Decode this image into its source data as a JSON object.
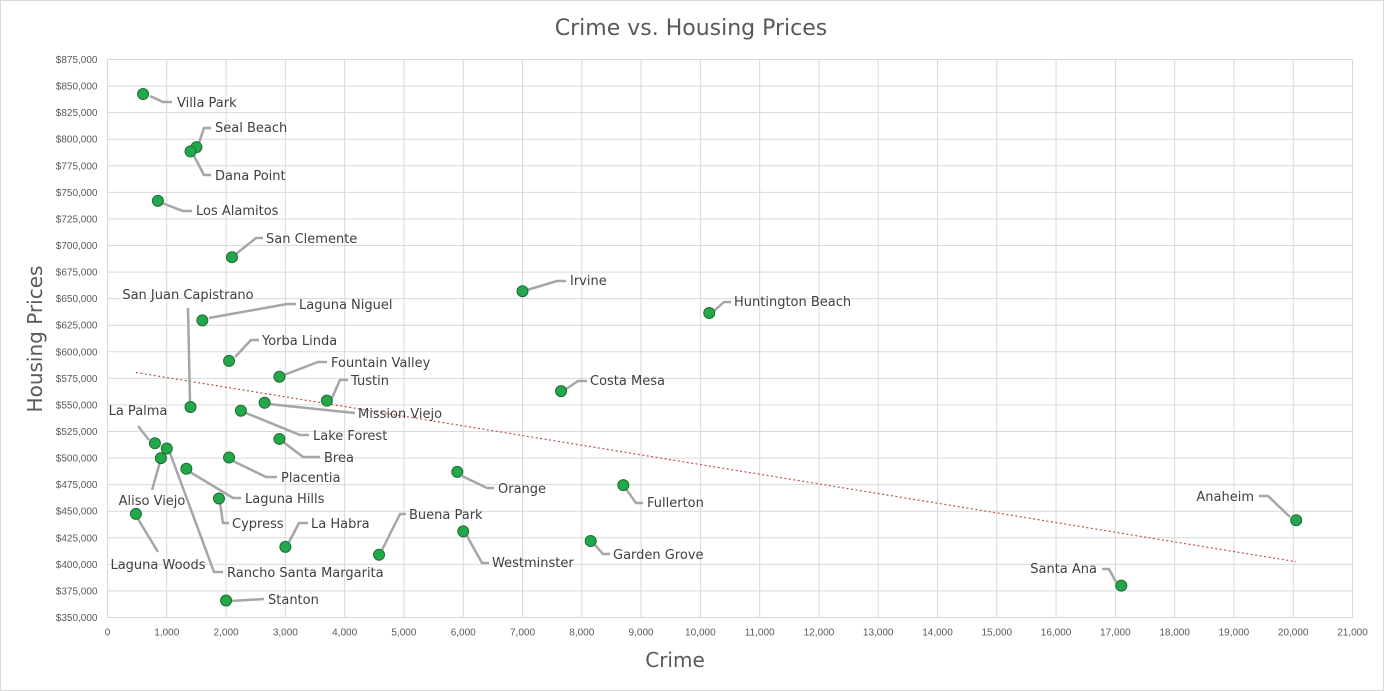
{
  "chart_data": {
    "type": "scatter",
    "title": "Crime vs. Housing Prices",
    "xlabel": "Crime",
    "ylabel": "Housing Prices",
    "xlim": [
      0,
      21000
    ],
    "ylim": [
      350000,
      875000
    ],
    "x_ticks": [
      "0",
      "1,000",
      "2,000",
      "3,000",
      "4,000",
      "5,000",
      "6,000",
      "7,000",
      "8,000",
      "9,000",
      "10,000",
      "11,000",
      "12,000",
      "13,000",
      "14,000",
      "15,000",
      "16,000",
      "17,000",
      "18,000",
      "19,000",
      "20,000",
      "21,000"
    ],
    "y_ticks": [
      "$350,000",
      "$375,000",
      "$400,000",
      "$425,000",
      "$450,000",
      "$475,000",
      "$500,000",
      "$525,000",
      "$550,000",
      "$575,000",
      "$600,000",
      "$625,000",
      "$650,000",
      "$675,000",
      "$700,000",
      "$725,000",
      "$750,000",
      "$775,000",
      "$800,000",
      "$825,000",
      "$850,000",
      "$875,000"
    ],
    "grid": true,
    "marker_color": "#22a84a",
    "trendline": {
      "type": "linear",
      "color": "#c0504d",
      "from": [
        480,
        580500
      ],
      "to": [
        20050,
        402500
      ]
    },
    "points": [
      {
        "name": "Villa Park",
        "x": 600,
        "y": 842500
      },
      {
        "name": "Seal Beach",
        "x": 1500,
        "y": 792500
      },
      {
        "name": "Dana Point",
        "x": 1400,
        "y": 788500
      },
      {
        "name": "Los Alamitos",
        "x": 850,
        "y": 742000
      },
      {
        "name": "San Clemente",
        "x": 2100,
        "y": 689000
      },
      {
        "name": "Irvine",
        "x": 7000,
        "y": 657000
      },
      {
        "name": "Huntington Beach",
        "x": 10150,
        "y": 636500
      },
      {
        "name": "Laguna Niguel",
        "x": 1600,
        "y": 629500
      },
      {
        "name": "San Juan Capistrano",
        "x": 1400,
        "y": 548000
      },
      {
        "name": "Yorba Linda",
        "x": 2050,
        "y": 591500
      },
      {
        "name": "Fountain Valley",
        "x": 2900,
        "y": 576500
      },
      {
        "name": "Tustin",
        "x": 3700,
        "y": 554000
      },
      {
        "name": "Costa Mesa",
        "x": 7650,
        "y": 563000
      },
      {
        "name": "Mission Viejo",
        "x": 2650,
        "y": 552000
      },
      {
        "name": "Lake Forest",
        "x": 2250,
        "y": 544500
      },
      {
        "name": "La Palma",
        "x": 800,
        "y": 514000
      },
      {
        "name": "Brea",
        "x": 2900,
        "y": 518000
      },
      {
        "name": "Aliso Viejo",
        "x": 900,
        "y": 500000
      },
      {
        "name": "Rancho Santa Margarita",
        "x": 1000,
        "y": 509000
      },
      {
        "name": "Placentia",
        "x": 2050,
        "y": 500500
      },
      {
        "name": "Orange",
        "x": 5900,
        "y": 487000
      },
      {
        "name": "Fullerton",
        "x": 8700,
        "y": 474500
      },
      {
        "name": "Laguna Hills",
        "x": 1330,
        "y": 490000
      },
      {
        "name": "Cypress",
        "x": 1880,
        "y": 462000
      },
      {
        "name": "Laguna Woods",
        "x": 480,
        "y": 447500
      },
      {
        "name": "Anaheim",
        "x": 20050,
        "y": 441500
      },
      {
        "name": "La Habra",
        "x": 3000,
        "y": 416500
      },
      {
        "name": "Buena Park",
        "x": 4580,
        "y": 409000
      },
      {
        "name": "Westminster",
        "x": 6000,
        "y": 431000
      },
      {
        "name": "Garden Grove",
        "x": 8150,
        "y": 422000
      },
      {
        "name": "Santa Ana",
        "x": 17100,
        "y": 380000
      },
      {
        "name": "Stanton",
        "x": 2000,
        "y": 366000
      }
    ]
  }
}
